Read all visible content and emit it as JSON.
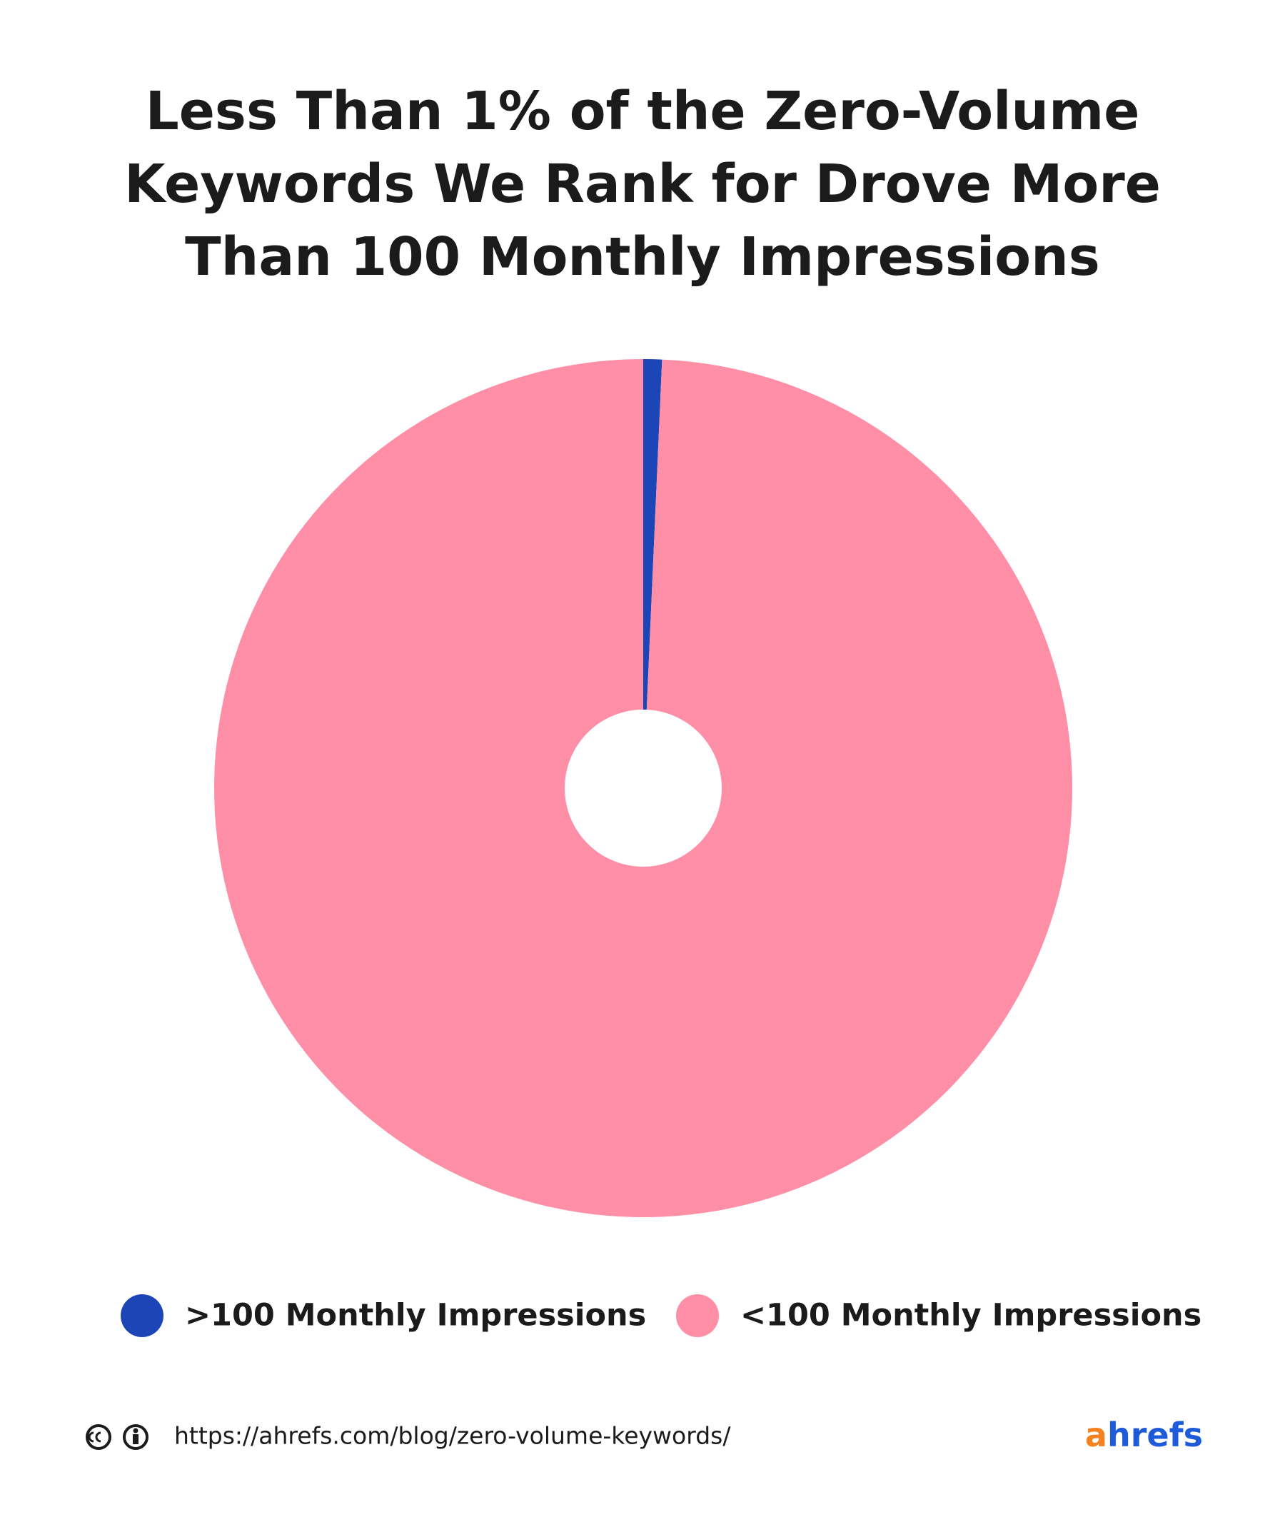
{
  "chart_data": {
    "type": "pie",
    "title": "Less Than 1% of the Zero-Volume Keywords We Rank for Drove More Than 100 Monthly Impressions",
    "categories": [
      ">100 Monthly Impressions",
      "<100 Monthly Impressions"
    ],
    "values": [
      0.7,
      99.3
    ],
    "colors": [
      "#1c45b8",
      "#fe8fa6"
    ]
  },
  "footer": {
    "url": "https://ahrefs.com/blog/zero-volume-keywords/",
    "brand": "ahrefs"
  }
}
